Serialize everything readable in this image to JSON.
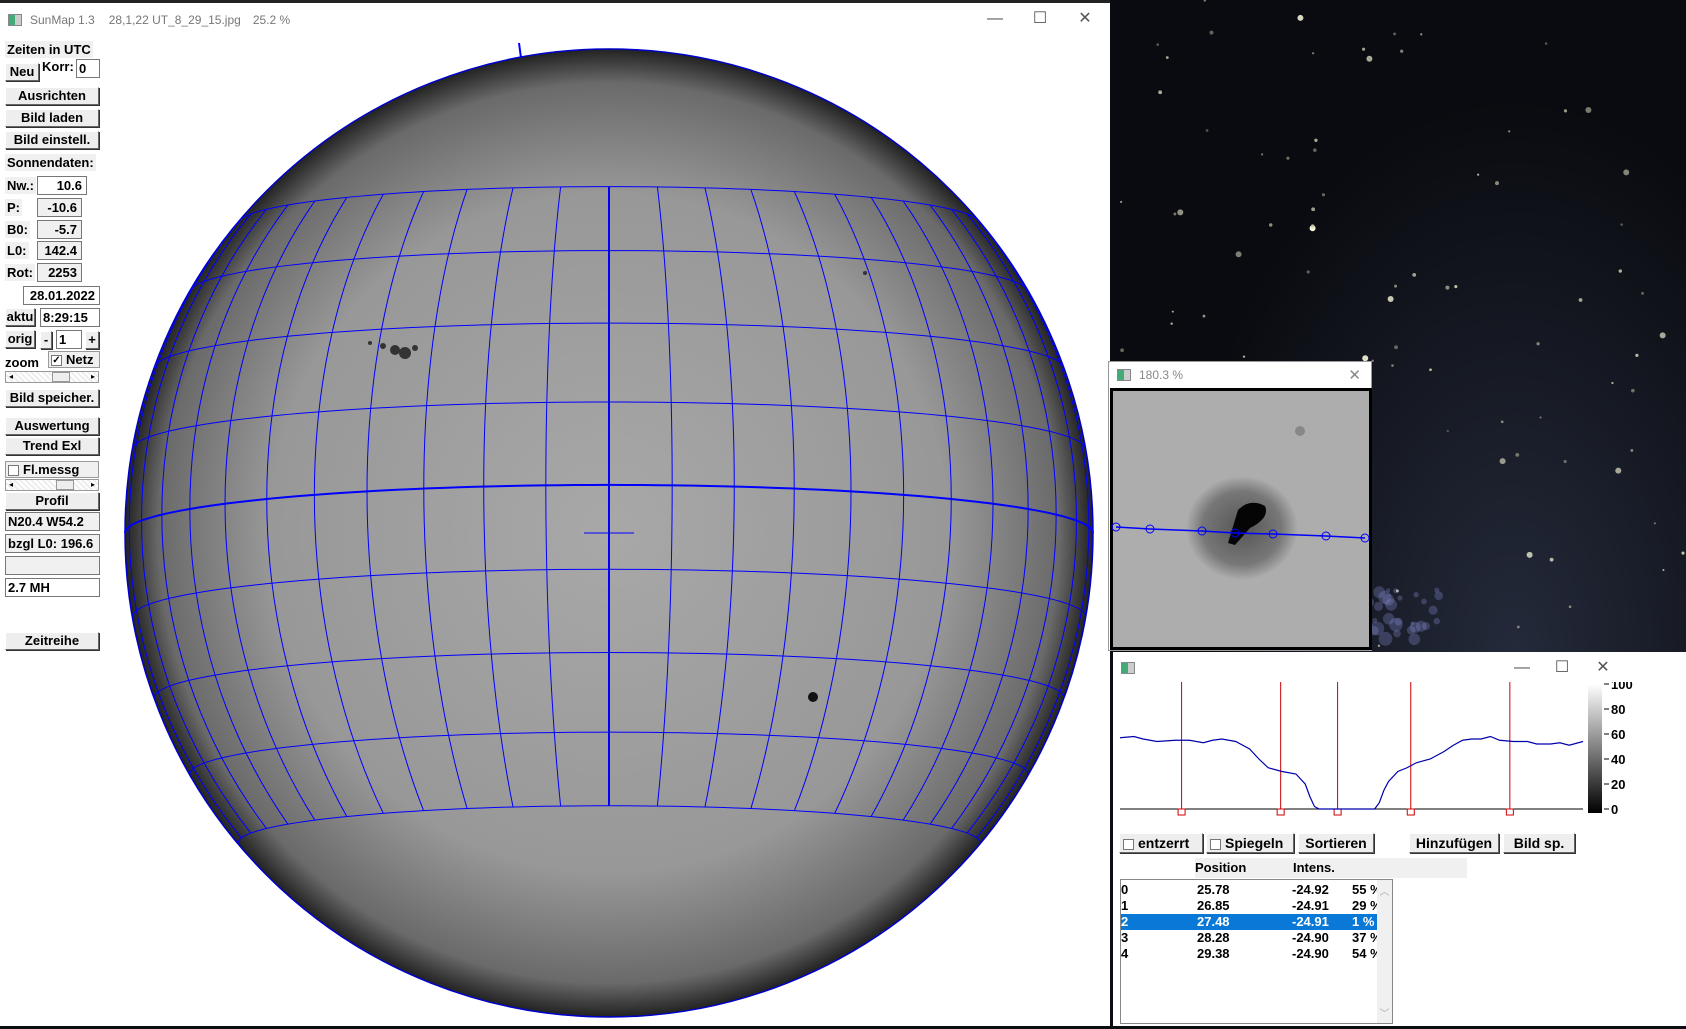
{
  "main_window": {
    "app": "SunMap 1.3",
    "file": "28,1,22 UT_8_29_15.jpg",
    "zoom": "25.2 %",
    "controls": {
      "minimize": "—",
      "maximize": "☐",
      "close": "✕"
    }
  },
  "panel": {
    "times_label": "Zeiten in UTC",
    "neu": "Neu",
    "korr_label": "Korr:",
    "korr_value": "0",
    "ausrichten": "Ausrichten",
    "bild_laden": "Bild laden",
    "bild_einstell": "Bild einstell.",
    "sonnendaten": "Sonnendaten:",
    "nw_label": "Nw.:",
    "nw": "10.6",
    "p_label": "P:",
    "p": "-10.6",
    "b0_label": "B0:",
    "b0": "-5.7",
    "l0_label": "L0:",
    "l0": "142.4",
    "rot_label": "Rot:",
    "rot": "2253",
    "date": "28.01.2022",
    "aktu": "aktu",
    "time": "8:29:15",
    "orig": "orig",
    "minus": "-",
    "step": "1",
    "plus": "+",
    "zoom_label": "zoom",
    "netz_label": "Netz",
    "netz_checked": true,
    "bild_speicher": "Bild speicher.",
    "auswertung": "Auswertung",
    "trend": "Trend Exl",
    "flmessg_label": "Fl.messg",
    "flmessg_checked": false,
    "profil": "Profil",
    "coords": "N20.4 W54.2",
    "bzgl": "bzgl L0: 196.6",
    "blank": "",
    "mh": "2.7 MH",
    "zeitreihe": "Zeitreihe"
  },
  "sun": {
    "B0": -5.7,
    "grid_color": "#0000ff",
    "lat_lines": [
      -40,
      -30,
      -20,
      -10,
      0,
      10,
      20,
      30,
      40
    ],
    "lon_step": 7.5
  },
  "zoom_window": {
    "title": "180.3 %",
    "close": "✕"
  },
  "profile_window": {
    "controls": {
      "minimize": "—",
      "maximize": "☐",
      "close": "✕"
    },
    "entzerrt": "entzerrt",
    "spiegeln": "Spiegeln",
    "sortieren": "Sortieren",
    "hinzufuegen": "Hinzufügen",
    "bild_sp": "Bild sp.",
    "col_position": "Position",
    "col_intens": "Intens.",
    "rows": [
      {
        "id": "0",
        "x": "25.78",
        "y": "-24.92",
        "intens": "55 %"
      },
      {
        "id": "1",
        "x": "26.85",
        "y": "-24.91",
        "intens": "29 %"
      },
      {
        "id": "2",
        "x": "27.48",
        "y": "-24.91",
        "intens": "1 %",
        "selected": true
      },
      {
        "id": "3",
        "x": "28.28",
        "y": "-24.90",
        "intens": "37 %"
      },
      {
        "id": "4",
        "x": "29.38",
        "y": "-24.90",
        "intens": "54 %"
      }
    ]
  },
  "chart_data": {
    "type": "line",
    "ylim": [
      0,
      100
    ],
    "yticks": [
      "100",
      "80",
      "60",
      "40",
      "20",
      "0"
    ],
    "x": [
      0,
      3,
      5,
      8,
      12,
      15,
      18,
      20,
      22,
      25,
      28,
      30,
      32,
      35,
      38,
      40,
      41,
      42,
      43,
      50,
      55,
      56,
      57,
      58,
      60,
      62,
      64,
      67,
      70,
      72,
      74,
      76,
      78,
      80,
      82,
      85,
      88,
      90,
      93,
      95,
      97,
      100
    ],
    "values": [
      57,
      58,
      56,
      54,
      55,
      55,
      53,
      55,
      56,
      54,
      48,
      40,
      33,
      30,
      28,
      20,
      10,
      2,
      0,
      0,
      0,
      5,
      15,
      22,
      30,
      33,
      37,
      40,
      46,
      51,
      55,
      56,
      56,
      58,
      55,
      54,
      54,
      52,
      52,
      53,
      51,
      54
    ],
    "markers": [
      13.3,
      34.7,
      47.0,
      62.8,
      84.2
    ],
    "line_color": "#0000aa",
    "marker_color": "#cc0000"
  }
}
